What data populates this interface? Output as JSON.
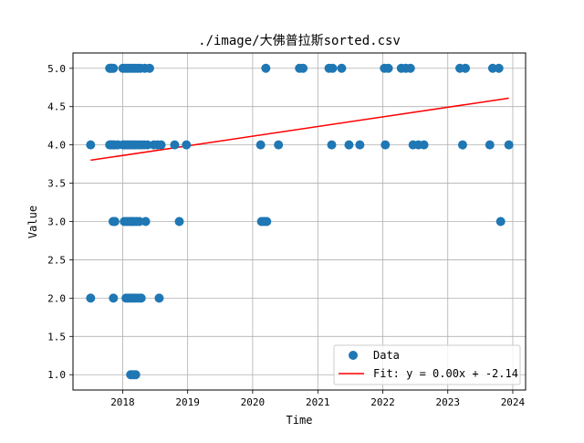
{
  "chart_data": {
    "type": "scatter",
    "title": "./image/大佛普拉斯sorted.csv",
    "xlabel": "Time",
    "ylabel": "Value",
    "xlim": [
      "2017-03-28",
      "2024-03-13"
    ],
    "ylim": [
      0.8,
      5.2
    ],
    "grid": true,
    "legend_position": "lower-right",
    "x_ticks": [
      "2018",
      "2019",
      "2020",
      "2021",
      "2022",
      "2023",
      "2024"
    ],
    "y_ticks": [
      "1.0",
      "1.5",
      "2.0",
      "2.5",
      "3.0",
      "3.5",
      "4.0",
      "4.5",
      "5.0"
    ],
    "series": [
      {
        "name": "Data",
        "kind": "scatter",
        "color": "#1f77b4",
        "points": [
          {
            "x": "2017-07-05",
            "y": 4
          },
          {
            "x": "2017-07-05",
            "y": 2
          },
          {
            "x": "2017-10-20",
            "y": 5
          },
          {
            "x": "2017-10-25",
            "y": 5
          },
          {
            "x": "2017-11-01",
            "y": 5
          },
          {
            "x": "2017-11-10",
            "y": 5
          },
          {
            "x": "2017-10-20",
            "y": 4
          },
          {
            "x": "2017-10-28",
            "y": 4
          },
          {
            "x": "2017-11-05",
            "y": 4
          },
          {
            "x": "2017-11-15",
            "y": 4
          },
          {
            "x": "2017-12-05",
            "y": 4
          },
          {
            "x": "2017-11-08",
            "y": 3
          },
          {
            "x": "2017-11-18",
            "y": 3
          },
          {
            "x": "2017-11-10",
            "y": 2
          },
          {
            "x": "2018-01-02",
            "y": 5
          },
          {
            "x": "2018-01-15",
            "y": 5
          },
          {
            "x": "2018-01-28",
            "y": 5
          },
          {
            "x": "2018-02-10",
            "y": 5
          },
          {
            "x": "2018-02-25",
            "y": 5
          },
          {
            "x": "2018-03-10",
            "y": 5
          },
          {
            "x": "2018-03-25",
            "y": 5
          },
          {
            "x": "2018-04-10",
            "y": 5
          },
          {
            "x": "2018-05-05",
            "y": 5
          },
          {
            "x": "2018-06-01",
            "y": 5
          },
          {
            "x": "2018-01-02",
            "y": 4
          },
          {
            "x": "2018-01-12",
            "y": 4
          },
          {
            "x": "2018-01-25",
            "y": 4
          },
          {
            "x": "2018-02-05",
            "y": 4
          },
          {
            "x": "2018-02-18",
            "y": 4
          },
          {
            "x": "2018-03-01",
            "y": 4
          },
          {
            "x": "2018-03-15",
            "y": 4
          },
          {
            "x": "2018-03-30",
            "y": 4
          },
          {
            "x": "2018-04-15",
            "y": 4
          },
          {
            "x": "2018-05-01",
            "y": 4
          },
          {
            "x": "2018-05-20",
            "y": 4
          },
          {
            "x": "2018-06-25",
            "y": 4
          },
          {
            "x": "2018-07-15",
            "y": 4
          },
          {
            "x": "2018-08-05",
            "y": 4
          },
          {
            "x": "2018-10-20",
            "y": 4
          },
          {
            "x": "2018-12-25",
            "y": 4
          },
          {
            "x": "2018-01-10",
            "y": 3
          },
          {
            "x": "2018-01-25",
            "y": 3
          },
          {
            "x": "2018-02-08",
            "y": 3
          },
          {
            "x": "2018-02-20",
            "y": 3
          },
          {
            "x": "2018-03-05",
            "y": 3
          },
          {
            "x": "2018-03-20",
            "y": 3
          },
          {
            "x": "2018-04-05",
            "y": 3
          },
          {
            "x": "2018-05-10",
            "y": 3
          },
          {
            "x": "2018-11-15",
            "y": 3
          },
          {
            "x": "2018-01-20",
            "y": 2
          },
          {
            "x": "2018-02-01",
            "y": 2
          },
          {
            "x": "2018-02-15",
            "y": 2
          },
          {
            "x": "2018-03-01",
            "y": 2
          },
          {
            "x": "2018-03-15",
            "y": 2
          },
          {
            "x": "2018-04-01",
            "y": 2
          },
          {
            "x": "2018-04-15",
            "y": 2
          },
          {
            "x": "2018-07-25",
            "y": 2
          },
          {
            "x": "2018-02-15",
            "y": 1
          },
          {
            "x": "2018-03-01",
            "y": 1
          },
          {
            "x": "2018-03-15",
            "y": 1
          },
          {
            "x": "2020-02-15",
            "y": 4
          },
          {
            "x": "2020-03-15",
            "y": 5
          },
          {
            "x": "2020-02-20",
            "y": 3
          },
          {
            "x": "2020-03-05",
            "y": 3
          },
          {
            "x": "2020-03-20",
            "y": 3
          },
          {
            "x": "2020-05-25",
            "y": 4
          },
          {
            "x": "2020-09-20",
            "y": 5
          },
          {
            "x": "2020-10-10",
            "y": 5
          },
          {
            "x": "2021-03-05",
            "y": 5
          },
          {
            "x": "2021-03-25",
            "y": 5
          },
          {
            "x": "2021-05-15",
            "y": 5
          },
          {
            "x": "2021-03-20",
            "y": 4
          },
          {
            "x": "2021-06-25",
            "y": 4
          },
          {
            "x": "2021-08-25",
            "y": 4
          },
          {
            "x": "2022-01-10",
            "y": 5
          },
          {
            "x": "2022-02-01",
            "y": 5
          },
          {
            "x": "2022-04-15",
            "y": 5
          },
          {
            "x": "2022-05-10",
            "y": 5
          },
          {
            "x": "2022-06-05",
            "y": 5
          },
          {
            "x": "2022-01-15",
            "y": 4
          },
          {
            "x": "2022-06-20",
            "y": 4
          },
          {
            "x": "2022-07-20",
            "y": 4
          },
          {
            "x": "2022-08-20",
            "y": 4
          },
          {
            "x": "2023-03-10",
            "y": 5
          },
          {
            "x": "2023-04-10",
            "y": 5
          },
          {
            "x": "2023-03-25",
            "y": 4
          },
          {
            "x": "2023-09-10",
            "y": 5
          },
          {
            "x": "2023-10-15",
            "y": 5
          },
          {
            "x": "2023-08-25",
            "y": 4
          },
          {
            "x": "2023-10-25",
            "y": 3
          },
          {
            "x": "2023-12-10",
            "y": 4
          }
        ]
      },
      {
        "name": "Fit: y = 0.00x + -2.14",
        "kind": "line",
        "color": "#ff0000",
        "points": [
          {
            "x": "2017-07-05",
            "y": 3.8
          },
          {
            "x": "2023-12-10",
            "y": 4.61
          }
        ]
      }
    ]
  }
}
